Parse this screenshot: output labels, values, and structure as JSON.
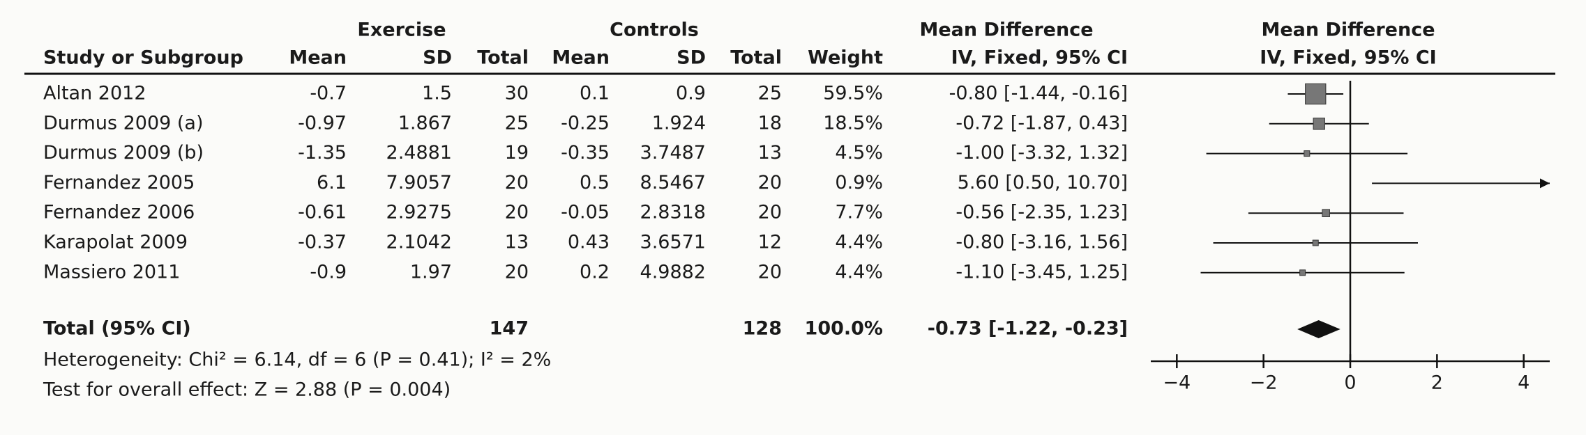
{
  "chart_data": {
    "type": "forest",
    "group_headers": [
      "Exercise",
      "Controls",
      "Mean Difference",
      "Mean Difference"
    ],
    "columns": [
      "Study or Subgroup",
      "Mean",
      "SD",
      "Total",
      "Mean",
      "SD",
      "Total",
      "Weight",
      "IV, Fixed, 95% CI",
      "IV, Fixed, 95% CI"
    ],
    "rows": [
      [
        "Altan 2012",
        "-0.7",
        "1.5",
        "30",
        "0.1",
        "0.9",
        "25",
        "59.5%",
        "-0.80 [-1.44, -0.16]"
      ],
      [
        "Durmus 2009 (a)",
        "-0.97",
        "1.867",
        "25",
        "-0.25",
        "1.924",
        "18",
        "18.5%",
        "-0.72 [-1.87, 0.43]"
      ],
      [
        "Durmus 2009 (b)",
        "-1.35",
        "2.4881",
        "19",
        "-0.35",
        "3.7487",
        "13",
        "4.5%",
        "-1.00 [-3.32, 1.32]"
      ],
      [
        "Fernandez 2005",
        "6.1",
        "7.9057",
        "20",
        "0.5",
        "8.5467",
        "20",
        "0.9%",
        "5.60 [0.50, 10.70]"
      ],
      [
        "Fernandez 2006",
        "-0.61",
        "2.9275",
        "20",
        "-0.05",
        "2.8318",
        "20",
        "7.7%",
        "-0.56 [-2.35, 1.23]"
      ],
      [
        "Karapolat 2009",
        "-0.37",
        "2.1042",
        "13",
        "0.43",
        "3.6571",
        "12",
        "4.4%",
        "-0.80 [-3.16, 1.56]"
      ],
      [
        "Massiero 2011",
        "-0.9",
        "1.97",
        "20",
        "0.2",
        "4.9882",
        "20",
        "4.4%",
        "-1.10 [-3.45, 1.25]"
      ]
    ],
    "estimates": [
      {
        "md": -0.8,
        "lo": -1.44,
        "hi": -0.16,
        "weight": 59.5
      },
      {
        "md": -0.72,
        "lo": -1.87,
        "hi": 0.43,
        "weight": 18.5
      },
      {
        "md": -1.0,
        "lo": -3.32,
        "hi": 1.32,
        "weight": 4.5
      },
      {
        "md": 5.6,
        "lo": 0.5,
        "hi": 10.7,
        "weight": 0.9
      },
      {
        "md": -0.56,
        "lo": -2.35,
        "hi": 1.23,
        "weight": 7.7
      },
      {
        "md": -0.8,
        "lo": -3.16,
        "hi": 1.56,
        "weight": 4.4
      },
      {
        "md": -1.1,
        "lo": -3.45,
        "hi": 1.25,
        "weight": 4.4
      }
    ],
    "total_row": [
      "Total (95% CI)",
      "147",
      "128",
      "100.0%",
      "-0.73 [-1.22, -0.23]"
    ],
    "total_estimate": {
      "md": -0.73,
      "lo": -1.22,
      "hi": -0.23
    },
    "heterogeneity": "Heterogeneity: Chi² = 6.14, df = 6 (P = 0.41); I² = 2%",
    "overall_effect": "Test for overall effect: Z = 2.88 (P = 0.004)",
    "xlim": [
      -4.6,
      4.6
    ],
    "xticks": [
      {
        "value": -4,
        "label": "−4"
      },
      {
        "value": -2,
        "label": "−2"
      },
      0,
      2,
      4
    ]
  }
}
